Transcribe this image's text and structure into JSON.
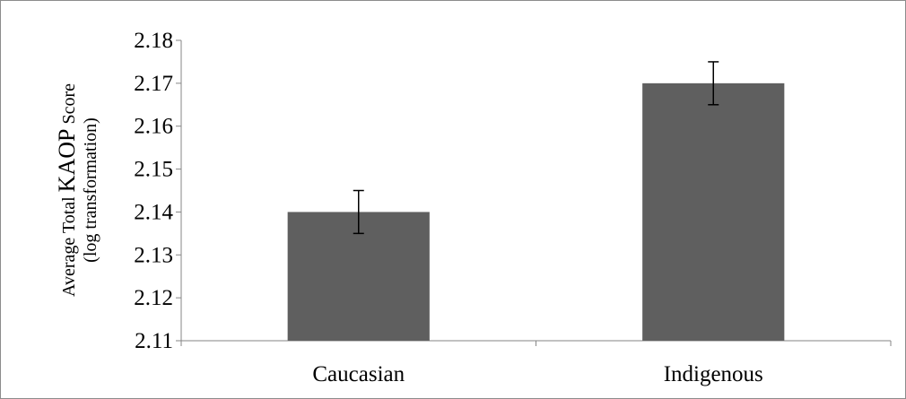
{
  "chart_data": {
    "type": "bar",
    "categories": [
      "Caucasian",
      "Indigenous"
    ],
    "values": [
      2.14,
      2.17
    ],
    "error": [
      0.005,
      0.005
    ],
    "ylabel": {
      "line1_prefix": "Average Total ",
      "line1_emph": "KAOP",
      "line1_suffix": " Score",
      "line2": "(log transformation)"
    },
    "ylim": [
      2.11,
      2.18
    ],
    "yticks": [
      "2.11",
      "2.12",
      "2.13",
      "2.14",
      "2.15",
      "2.16",
      "2.17",
      "2.18"
    ],
    "grid": false,
    "legend": "none",
    "bar_color": "#5f5f5f"
  }
}
